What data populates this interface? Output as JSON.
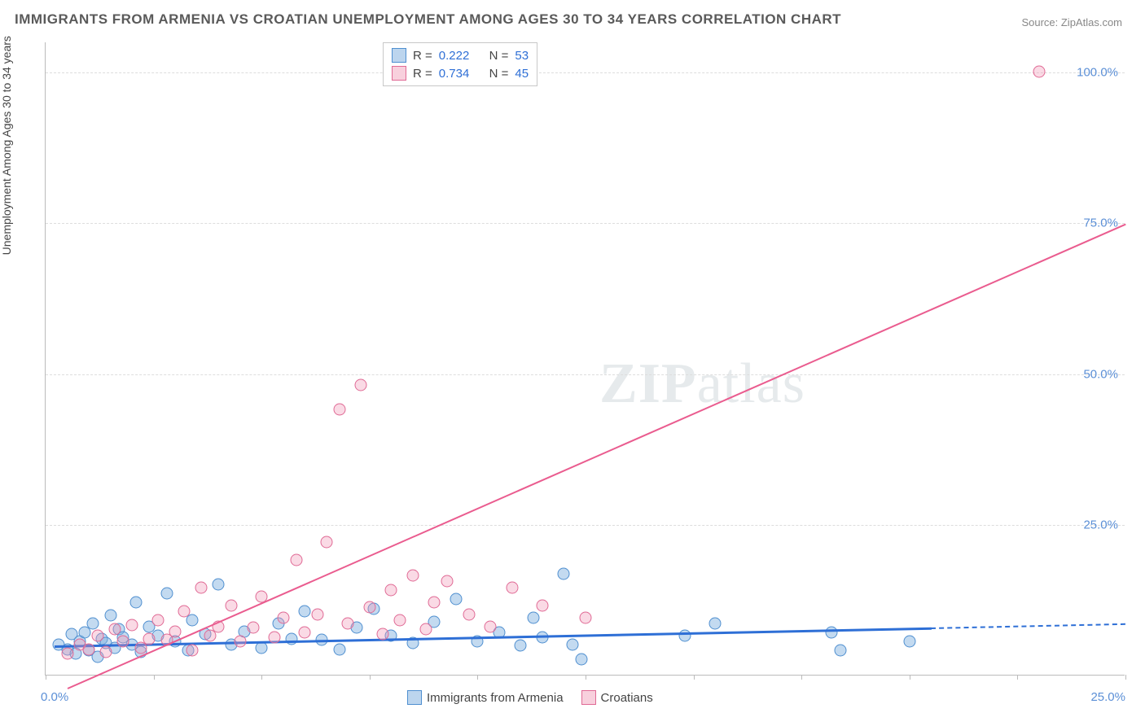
{
  "title": "IMMIGRANTS FROM ARMENIA VS CROATIAN UNEMPLOYMENT AMONG AGES 30 TO 34 YEARS CORRELATION CHART",
  "source": "Source: ZipAtlas.com",
  "y_axis_title": "Unemployment Among Ages 30 to 34 years",
  "watermark_bold": "ZIP",
  "watermark_rest": "atlas",
  "chart": {
    "type": "scatter",
    "xlim": [
      0,
      25
    ],
    "ylim": [
      0,
      105
    ],
    "x_ticks": [
      0,
      2.5,
      5,
      7.5,
      10,
      12.5,
      15,
      17.5,
      20,
      22.5,
      25
    ],
    "y_grid": [
      25,
      50,
      75,
      100
    ],
    "y_tick_labels": {
      "25": "25.0%",
      "50": "50.0%",
      "75": "75.0%",
      "100": "100.0%"
    },
    "x_label_start": "0.0%",
    "x_label_end": "25.0%",
    "background_color": "#ffffff",
    "grid_color": "#dddddd",
    "axis_color": "#bbbbbb",
    "label_color": "#5b8fd6",
    "marker_size": 15,
    "series": [
      {
        "name": "Immigrants from Armenia",
        "color_fill": "rgba(122,172,222,0.45)",
        "color_stroke": "#4f8fd0",
        "R": "0.222",
        "N": "53",
        "trend": {
          "x1": 0.2,
          "y1": 5.0,
          "x2": 20.5,
          "y2": 8.0,
          "color": "#2e6fd6",
          "dash_to_x": 25.0,
          "dash_to_y": 8.7
        },
        "points": [
          [
            0.3,
            5.0
          ],
          [
            0.5,
            4.2
          ],
          [
            0.6,
            6.8
          ],
          [
            0.7,
            3.5
          ],
          [
            0.8,
            5.5
          ],
          [
            0.9,
            7.0
          ],
          [
            1.0,
            4.0
          ],
          [
            1.1,
            8.5
          ],
          [
            1.2,
            3.0
          ],
          [
            1.3,
            6.0
          ],
          [
            1.4,
            5.2
          ],
          [
            1.5,
            9.8
          ],
          [
            1.6,
            4.5
          ],
          [
            1.7,
            7.5
          ],
          [
            1.8,
            6.2
          ],
          [
            2.0,
            5.0
          ],
          [
            2.1,
            12.0
          ],
          [
            2.2,
            3.8
          ],
          [
            2.4,
            8.0
          ],
          [
            2.6,
            6.5
          ],
          [
            2.8,
            13.5
          ],
          [
            3.0,
            5.5
          ],
          [
            3.3,
            4.0
          ],
          [
            3.4,
            9.0
          ],
          [
            3.7,
            6.8
          ],
          [
            4.0,
            15.0
          ],
          [
            4.3,
            5.0
          ],
          [
            4.6,
            7.2
          ],
          [
            5.0,
            4.5
          ],
          [
            5.4,
            8.5
          ],
          [
            5.7,
            6.0
          ],
          [
            6.0,
            10.5
          ],
          [
            6.4,
            5.8
          ],
          [
            6.8,
            4.2
          ],
          [
            7.2,
            7.8
          ],
          [
            7.6,
            11.0
          ],
          [
            8.0,
            6.5
          ],
          [
            8.5,
            5.2
          ],
          [
            9.0,
            8.8
          ],
          [
            9.5,
            12.5
          ],
          [
            10.0,
            5.5
          ],
          [
            10.5,
            7.0
          ],
          [
            11.0,
            4.8
          ],
          [
            11.3,
            9.5
          ],
          [
            11.5,
            6.2
          ],
          [
            12.0,
            16.8
          ],
          [
            12.2,
            5.0
          ],
          [
            12.4,
            2.5
          ],
          [
            14.8,
            6.5
          ],
          [
            15.5,
            8.5
          ],
          [
            18.2,
            7.0
          ],
          [
            18.4,
            4.0
          ],
          [
            20.0,
            5.5
          ]
        ]
      },
      {
        "name": "Croatians",
        "color_fill": "rgba(240,150,180,0.35)",
        "color_stroke": "#e06a95",
        "R": "0.734",
        "N": "45",
        "trend": {
          "x1": 0.5,
          "y1": -2.0,
          "x2": 25.0,
          "y2": 75.0,
          "color": "#ea5c8f"
        },
        "points": [
          [
            0.5,
            3.5
          ],
          [
            0.8,
            5.0
          ],
          [
            1.0,
            4.2
          ],
          [
            1.2,
            6.5
          ],
          [
            1.4,
            3.8
          ],
          [
            1.6,
            7.5
          ],
          [
            1.8,
            5.5
          ],
          [
            2.0,
            8.2
          ],
          [
            2.2,
            4.5
          ],
          [
            2.4,
            6.0
          ],
          [
            2.6,
            9.0
          ],
          [
            2.8,
            5.8
          ],
          [
            3.0,
            7.2
          ],
          [
            3.2,
            10.5
          ],
          [
            3.4,
            4.0
          ],
          [
            3.6,
            14.5
          ],
          [
            3.8,
            6.5
          ],
          [
            4.0,
            8.0
          ],
          [
            4.3,
            11.5
          ],
          [
            4.5,
            5.5
          ],
          [
            4.8,
            7.8
          ],
          [
            5.0,
            13.0
          ],
          [
            5.3,
            6.2
          ],
          [
            5.5,
            9.5
          ],
          [
            5.8,
            19.0
          ],
          [
            6.0,
            7.0
          ],
          [
            6.3,
            10.0
          ],
          [
            6.5,
            22.0
          ],
          [
            6.8,
            44.0
          ],
          [
            7.0,
            8.5
          ],
          [
            7.3,
            48.0
          ],
          [
            7.5,
            11.2
          ],
          [
            7.8,
            6.8
          ],
          [
            8.0,
            14.0
          ],
          [
            8.2,
            9.0
          ],
          [
            8.5,
            16.5
          ],
          [
            8.8,
            7.5
          ],
          [
            9.0,
            12.0
          ],
          [
            9.3,
            15.5
          ],
          [
            9.8,
            10.0
          ],
          [
            10.3,
            8.0
          ],
          [
            10.8,
            14.5
          ],
          [
            11.5,
            11.5
          ],
          [
            12.5,
            9.5
          ],
          [
            23.0,
            100.0
          ]
        ]
      }
    ]
  },
  "legend_top": {
    "rows": [
      {
        "swatch": "blue",
        "R_label": "R =",
        "R": "0.222",
        "N_label": "N =",
        "N": "53"
      },
      {
        "swatch": "pink",
        "R_label": "R =",
        "R": "0.734",
        "N_label": "N =",
        "N": "45"
      }
    ]
  },
  "legend_bottom": [
    {
      "swatch": "blue",
      "label": "Immigrants from Armenia"
    },
    {
      "swatch": "pink",
      "label": "Croatians"
    }
  ]
}
